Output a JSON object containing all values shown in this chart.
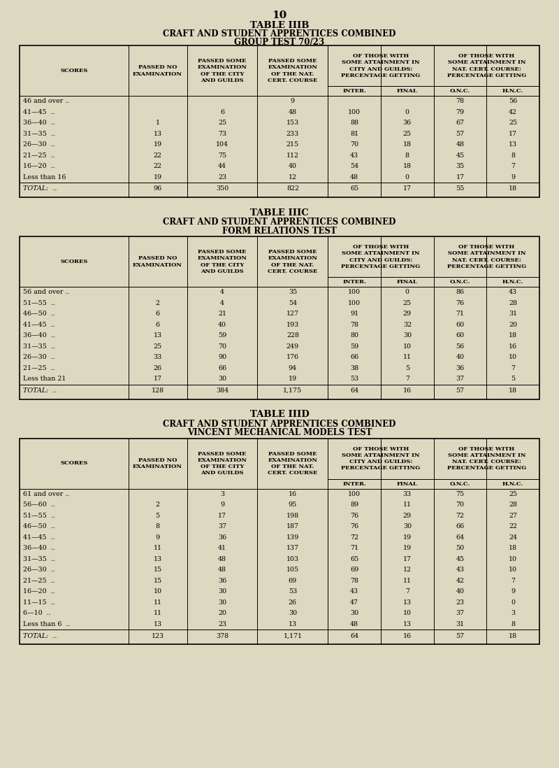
{
  "bg_color": "#ddd8c0",
  "page_number": "10",
  "super_headers": [
    "OF THOSE WITH\nSOME ATTAINMENT IN\nCITY AND GUILDS:\nPERCENTAGE GETTING",
    "OF THOSE WITH\nSOME ATTAINMENT IN\nNAT. CERT. COURSE:\nPERCENTAGE GETTING"
  ],
  "col_labels_main": [
    "SCORES",
    "PASSED NO\nEXAMINATION",
    "PASSED SOME\nEXAMINATION\nOF THE CITY\nAND GUILDS",
    "PASSED SOME\nEXAMINATION\nOF THE NAT.\nCERT. COURSE"
  ],
  "col_labels_sub": [
    "INTER.",
    "FINAL",
    "O.N.C.",
    "H.N.C."
  ],
  "table_iiib": {
    "title1": "TABLE IIIB",
    "title2": "CRAFT AND STUDENT APPRENTICES COMBINED",
    "title3": "GROUP TEST 70/23",
    "rows": [
      [
        "46 and over ..",
        "",
        "",
        "9",
        "",
        "",
        "78",
        "56"
      ],
      [
        "41—45  ..",
        "",
        "6",
        "48",
        "100",
        "0",
        "79",
        "42"
      ],
      [
        "36—40  ..",
        "1",
        "25",
        "153",
        "88",
        "36",
        "67",
        "25"
      ],
      [
        "31—35  ..",
        "13",
        "73",
        "233",
        "81",
        "25",
        "57",
        "17"
      ],
      [
        "26—30  ..",
        "19",
        "104",
        "215",
        "70",
        "18",
        "48",
        "13"
      ],
      [
        "21—25  ..",
        "22",
        "75",
        "112",
        "43",
        "8",
        "45",
        "8"
      ],
      [
        "16—20  ..",
        "22",
        "44",
        "40",
        "54",
        "18",
        "35",
        "7"
      ],
      [
        "Less than 16",
        "19",
        "23",
        "12",
        "48",
        "0",
        "17",
        "9"
      ]
    ],
    "total_row": [
      "TOTAL:  ..",
      "96",
      "350",
      "822",
      "65",
      "17",
      "55",
      "18"
    ]
  },
  "table_iiic": {
    "title1": "TABLE IIIC",
    "title2": "CRAFT AND STUDENT APPRENTICES COMBINED",
    "title3": "FORM RELATIONS TEST",
    "rows": [
      [
        "56 and over ..",
        "",
        "4",
        "35",
        "100",
        "0",
        "86",
        "43"
      ],
      [
        "51—55  ..",
        "2",
        "4",
        "54",
        "100",
        "25",
        "76",
        "28"
      ],
      [
        "46—50  ..",
        "6",
        "21",
        "127",
        "91",
        "29",
        "71",
        "31"
      ],
      [
        "41—45  ..",
        "6",
        "40",
        "193",
        "78",
        "32",
        "60",
        "20"
      ],
      [
        "36—40  ..",
        "13",
        "59",
        "228",
        "80",
        "30",
        "60",
        "18"
      ],
      [
        "31—35  ..",
        "25",
        "70",
        "249",
        "59",
        "10",
        "56",
        "16"
      ],
      [
        "26—30  ..",
        "33",
        "90",
        "176",
        "66",
        "11",
        "40",
        "10"
      ],
      [
        "21—25  ..",
        "26",
        "66",
        "94",
        "38",
        "5",
        "36",
        "7"
      ],
      [
        "Less than 21",
        "17",
        "30",
        "19",
        "53",
        "7",
        "37",
        "5"
      ]
    ],
    "total_row": [
      "TOTAL:  ..",
      "128",
      "384",
      "1,175",
      "64",
      "16",
      "57",
      "18"
    ]
  },
  "table_iiid": {
    "title1": "TABLE IIID",
    "title2": "CRAFT AND STUDENT APPRENTICES COMBINED",
    "title3": "VINCENT MECHANICAL MODELS TEST",
    "rows": [
      [
        "61 and over ..",
        "",
        "3",
        "16",
        "100",
        "33",
        "75",
        "25"
      ],
      [
        "56—60  ..",
        "2",
        "9",
        "95",
        "89",
        "11",
        "70",
        "28"
      ],
      [
        "51—55  ..",
        "5",
        "17",
        "198",
        "76",
        "29",
        "72",
        "27"
      ],
      [
        "46—50  ..",
        "8",
        "37",
        "187",
        "76",
        "30",
        "66",
        "22"
      ],
      [
        "41—45  ..",
        "9",
        "36",
        "139",
        "72",
        "19",
        "64",
        "24"
      ],
      [
        "36—40  ..",
        "11",
        "41",
        "137",
        "71",
        "19",
        "50",
        "18"
      ],
      [
        "31—35  ..",
        "13",
        "48",
        "103",
        "65",
        "17",
        "45",
        "10"
      ],
      [
        "26—30  ..",
        "15",
        "48",
        "105",
        "69",
        "12",
        "43",
        "10"
      ],
      [
        "21—25  ..",
        "15",
        "36",
        "69",
        "78",
        "11",
        "42",
        "7"
      ],
      [
        "16—20  ..",
        "10",
        "30",
        "53",
        "43",
        "7",
        "40",
        "9"
      ],
      [
        "11—15  ..",
        "11",
        "30",
        "26",
        "47",
        "13",
        "23",
        "0"
      ],
      [
        "6—10  ..",
        "11",
        "20",
        "30",
        "30",
        "10",
        "37",
        "3"
      ],
      [
        "Less than 6  ..",
        "13",
        "23",
        "13",
        "48",
        "13",
        "31",
        "8"
      ]
    ],
    "total_row": [
      "TOTAL:  ..",
      "123",
      "378",
      "1,171",
      "64",
      "16",
      "57",
      "18"
    ]
  }
}
